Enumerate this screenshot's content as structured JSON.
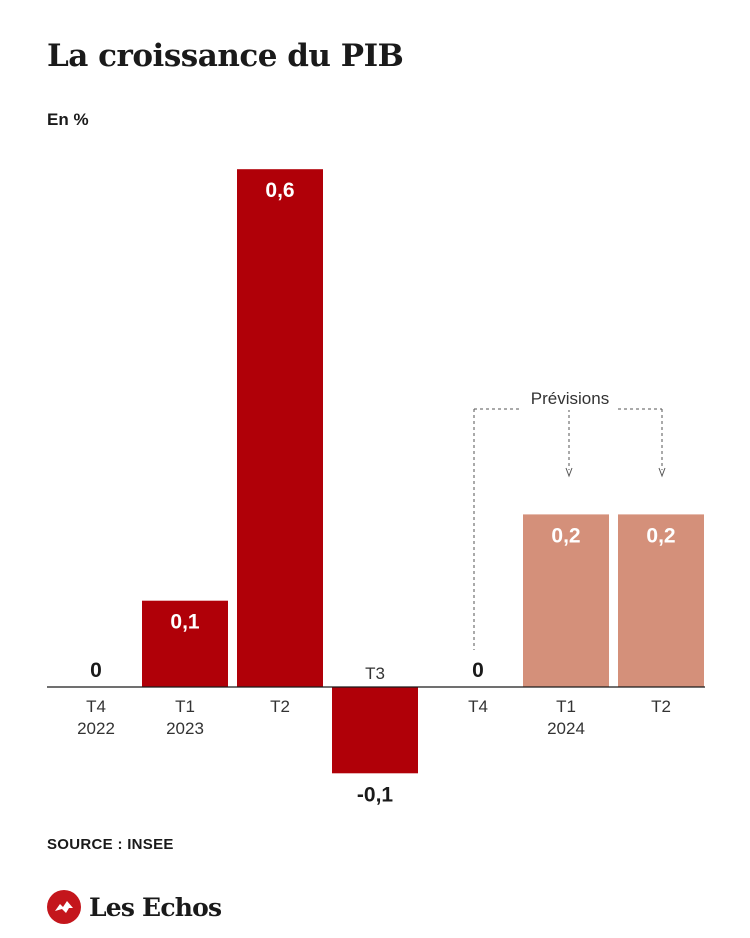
{
  "header": {
    "title": "La croissance du PIB",
    "unit": "En %"
  },
  "footer": {
    "source": "SOURCE : INSEE",
    "brand": "Les Echos",
    "brand_icon": "les-echos-logo-icon"
  },
  "colors": {
    "actual": "#b00008",
    "forecast": "#d4907a",
    "text": "#1a1a1a"
  },
  "chart_data": {
    "type": "bar",
    "ylabel": "En %",
    "categories": [
      "T4 2022",
      "T1 2023",
      "T2 2023",
      "T3 2023",
      "T4 2023",
      "T1 2024",
      "T2 2024"
    ],
    "tick_labels": [
      [
        "T4",
        "2022"
      ],
      [
        "T1",
        "2023"
      ],
      [
        "T2"
      ],
      [
        "T3"
      ],
      [
        "T4"
      ],
      [
        "T1",
        "2024"
      ],
      [
        "T2"
      ]
    ],
    "values": [
      0,
      0.1,
      0.6,
      -0.1,
      0,
      0.2,
      0.2
    ],
    "value_labels": [
      "0",
      "0,1",
      "0,6",
      "-0,1",
      "0",
      "0,2",
      "0,2"
    ],
    "forecast": [
      false,
      false,
      false,
      false,
      false,
      true,
      true
    ],
    "annotation": "Prévisions",
    "ylim": [
      -0.1,
      0.6
    ],
    "grid": false,
    "legend": "none"
  }
}
